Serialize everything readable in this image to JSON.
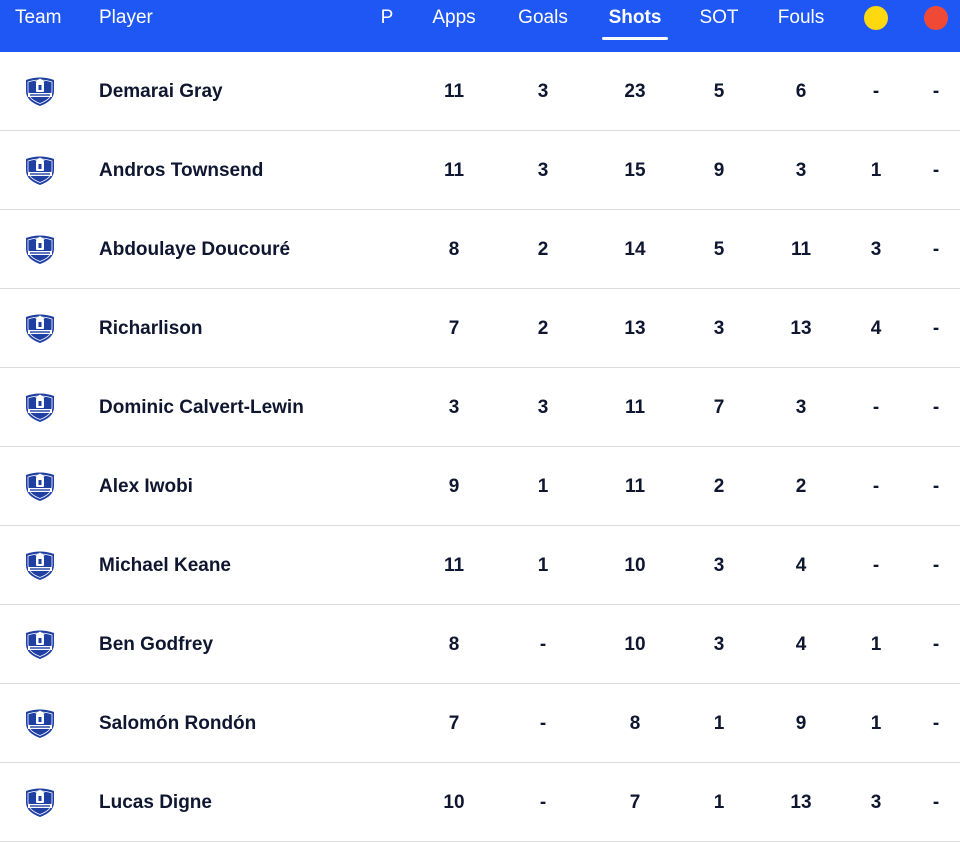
{
  "header": {
    "team": "Team",
    "player": "Player",
    "pos": "P",
    "apps": "Apps",
    "goals": "Goals",
    "shots": "Shots",
    "sot": "SOT",
    "fouls": "Fouls",
    "yellow_icon": "yellow-card-icon",
    "red_icon": "red-card-icon",
    "yellow_color": "#ffd90f",
    "red_color": "#f04a37",
    "active_sort": "Shots"
  },
  "colors": {
    "header_bg": "#1f57f5",
    "crest_blue": "#1f3fa3"
  },
  "rows": [
    {
      "player": "Demarai Gray",
      "pos": "",
      "apps": "11",
      "goals": "3",
      "shots": "23",
      "sot": "5",
      "fouls": "6",
      "yellow": "-",
      "red": "-"
    },
    {
      "player": "Andros Townsend",
      "pos": "",
      "apps": "11",
      "goals": "3",
      "shots": "15",
      "sot": "9",
      "fouls": "3",
      "yellow": "1",
      "red": "-"
    },
    {
      "player": "Abdoulaye Doucouré",
      "pos": "",
      "apps": "8",
      "goals": "2",
      "shots": "14",
      "sot": "5",
      "fouls": "11",
      "yellow": "3",
      "red": "-"
    },
    {
      "player": "Richarlison",
      "pos": "",
      "apps": "7",
      "goals": "2",
      "shots": "13",
      "sot": "3",
      "fouls": "13",
      "yellow": "4",
      "red": "-"
    },
    {
      "player": "Dominic Calvert-Lewin",
      "pos": "",
      "apps": "3",
      "goals": "3",
      "shots": "11",
      "sot": "7",
      "fouls": "3",
      "yellow": "-",
      "red": "-"
    },
    {
      "player": "Alex Iwobi",
      "pos": "",
      "apps": "9",
      "goals": "1",
      "shots": "11",
      "sot": "2",
      "fouls": "2",
      "yellow": "-",
      "red": "-"
    },
    {
      "player": "Michael Keane",
      "pos": "",
      "apps": "11",
      "goals": "1",
      "shots": "10",
      "sot": "3",
      "fouls": "4",
      "yellow": "-",
      "red": "-"
    },
    {
      "player": "Ben Godfrey",
      "pos": "",
      "apps": "8",
      "goals": "-",
      "shots": "10",
      "sot": "3",
      "fouls": "4",
      "yellow": "1",
      "red": "-"
    },
    {
      "player": "Salomón Rondón",
      "pos": "",
      "apps": "7",
      "goals": "-",
      "shots": "8",
      "sot": "1",
      "fouls": "9",
      "yellow": "1",
      "red": "-"
    },
    {
      "player": "Lucas Digne",
      "pos": "",
      "apps": "10",
      "goals": "-",
      "shots": "7",
      "sot": "1",
      "fouls": "13",
      "yellow": "3",
      "red": "-"
    }
  ]
}
